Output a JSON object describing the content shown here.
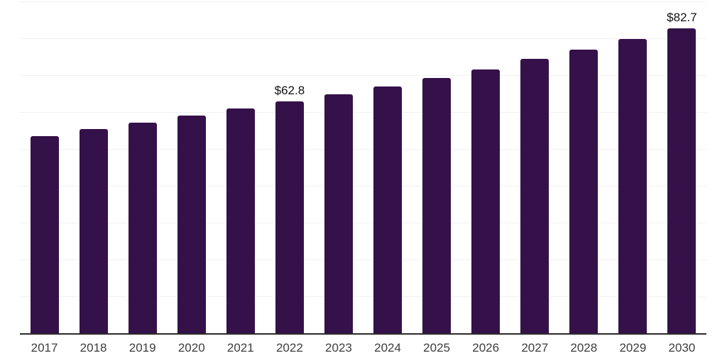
{
  "chart_data": {
    "type": "bar",
    "title": "",
    "xlabel": "",
    "ylabel": "",
    "categories": [
      "2017",
      "2018",
      "2019",
      "2020",
      "2021",
      "2022",
      "2023",
      "2024",
      "2025",
      "2026",
      "2027",
      "2028",
      "2029",
      "2030"
    ],
    "values": [
      53.4,
      55.3,
      57.2,
      59.1,
      60.9,
      62.8,
      64.9,
      66.9,
      69.3,
      71.6,
      74.5,
      77.0,
      79.9,
      82.7
    ],
    "data_labels": [
      {
        "index": 5,
        "text": "$62.8"
      },
      {
        "index": 13,
        "text": "$82.7"
      }
    ],
    "ylim": [
      0,
      90
    ],
    "grid_step": 10,
    "grid": true,
    "legend_position": "none",
    "y_tick_labels_shown": false,
    "colors": {
      "bar": "#35114a",
      "gridline": "#f1f1f1",
      "axis": "#2b2b2b",
      "tick_label": "#3d3d3d",
      "data_label": "#111111",
      "background": "#ffffff"
    }
  }
}
